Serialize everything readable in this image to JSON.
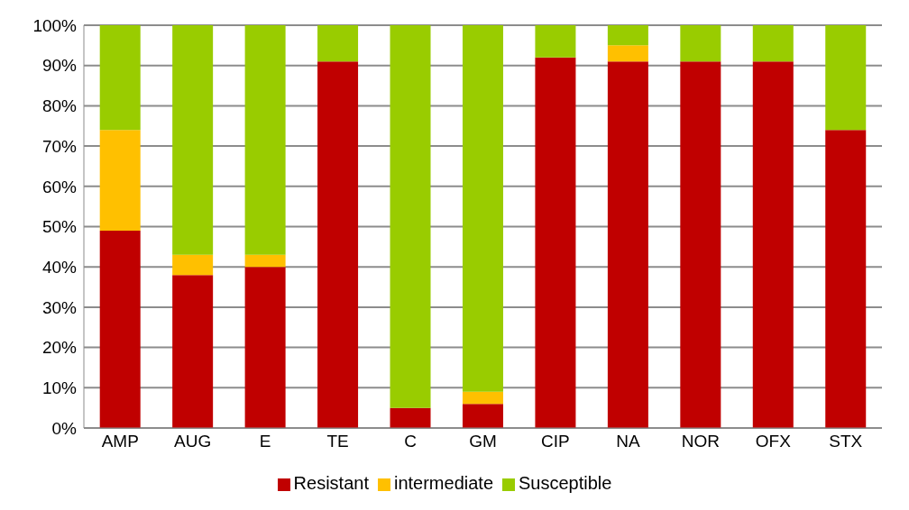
{
  "chart_data": {
    "type": "bar",
    "stacked": true,
    "categories": [
      "AMP",
      "AUG",
      "E",
      "TE",
      "C",
      "GM",
      "CIP",
      "NA",
      "NOR",
      "OFX",
      "STX"
    ],
    "series": [
      {
        "name": "Resistant",
        "color": "#c00000",
        "values": [
          49,
          38,
          40,
          91,
          5,
          6,
          92,
          91,
          91,
          91,
          74
        ]
      },
      {
        "name": "intermediate",
        "color": "#ffc000",
        "values": [
          25,
          5,
          3,
          0,
          0,
          3,
          0,
          4,
          0,
          0,
          0
        ]
      },
      {
        "name": "Susceptible",
        "color": "#99cc00",
        "values": [
          26,
          57,
          57,
          9,
          95,
          91,
          8,
          5,
          9,
          9,
          26
        ]
      }
    ],
    "ylim": [
      0,
      100
    ],
    "yticks": [
      {
        "value": 0,
        "label": "0%"
      },
      {
        "value": 10,
        "label": "10%"
      },
      {
        "value": 20,
        "label": "20%"
      },
      {
        "value": 30,
        "label": "30%"
      },
      {
        "value": 40,
        "label": "40%"
      },
      {
        "value": 50,
        "label": "50%"
      },
      {
        "value": 60,
        "label": "60%"
      },
      {
        "value": 70,
        "label": "70%"
      },
      {
        "value": 80,
        "label": "80%"
      },
      {
        "value": 90,
        "label": "90%"
      },
      {
        "value": 100,
        "label": "100%"
      }
    ],
    "grid": "y",
    "legend": "bottom"
  }
}
